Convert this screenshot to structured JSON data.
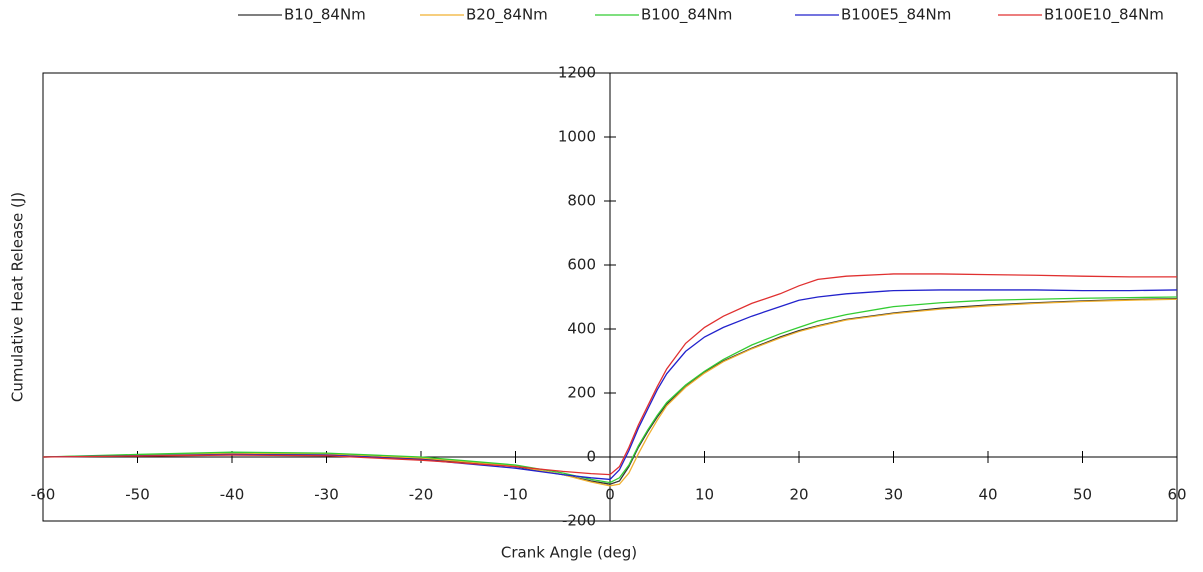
{
  "chart_data": {
    "type": "line",
    "x_label": "Crank Angle (deg)",
    "y_label": "Cumulative Heat Release (J)",
    "x": [
      -60,
      -50,
      -40,
      -30,
      -20,
      -10,
      -5,
      -2,
      0,
      1,
      2,
      3,
      4,
      5,
      6,
      8,
      10,
      12,
      15,
      18,
      20,
      22,
      25,
      30,
      35,
      40,
      45,
      50,
      55,
      60
    ],
    "series": [
      {
        "name": "B10_84Nm",
        "color": "#333333",
        "values": [
          0,
          5,
          10,
          8,
          -5,
          -30,
          -55,
          -75,
          -85,
          -75,
          -30,
          30,
          80,
          125,
          165,
          220,
          265,
          300,
          340,
          375,
          395,
          410,
          430,
          450,
          465,
          475,
          482,
          488,
          492,
          495
        ]
      },
      {
        "name": "B20_84Nm",
        "color": "#f0b030",
        "values": [
          0,
          6,
          12,
          10,
          -3,
          -28,
          -55,
          -78,
          -90,
          -85,
          -50,
          10,
          65,
          115,
          160,
          218,
          262,
          298,
          338,
          372,
          392,
          408,
          428,
          448,
          462,
          472,
          480,
          486,
          490,
          493
        ]
      },
      {
        "name": "B100_84Nm",
        "color": "#33cc33",
        "values": [
          0,
          8,
          15,
          12,
          0,
          -25,
          -50,
          -70,
          -80,
          -65,
          -25,
          35,
          85,
          130,
          170,
          225,
          268,
          305,
          350,
          385,
          405,
          425,
          445,
          470,
          482,
          490,
          493,
          496,
          498,
          500
        ]
      },
      {
        "name": "B100E5_84Nm",
        "color": "#2222cc",
        "values": [
          0,
          4,
          8,
          6,
          -8,
          -35,
          -55,
          -65,
          -70,
          -40,
          20,
          90,
          150,
          210,
          260,
          330,
          375,
          405,
          440,
          470,
          490,
          500,
          510,
          520,
          522,
          522,
          522,
          520,
          520,
          522
        ]
      },
      {
        "name": "B100E10_84Nm",
        "color": "#e03030",
        "values": [
          0,
          3,
          6,
          4,
          -10,
          -30,
          -45,
          -52,
          -55,
          -30,
          30,
          100,
          160,
          220,
          275,
          355,
          405,
          440,
          480,
          510,
          535,
          555,
          565,
          572,
          572,
          570,
          568,
          565,
          563,
          563
        ]
      }
    ],
    "xlim": [
      -60,
      60
    ],
    "xticks": [
      -60,
      -50,
      -40,
      -30,
      -20,
      -10,
      0,
      10,
      20,
      30,
      40,
      50,
      60
    ],
    "ylim": [
      -200,
      1200
    ],
    "yticks": [
      -200,
      0,
      200,
      400,
      600,
      800,
      1000,
      1200
    ]
  }
}
